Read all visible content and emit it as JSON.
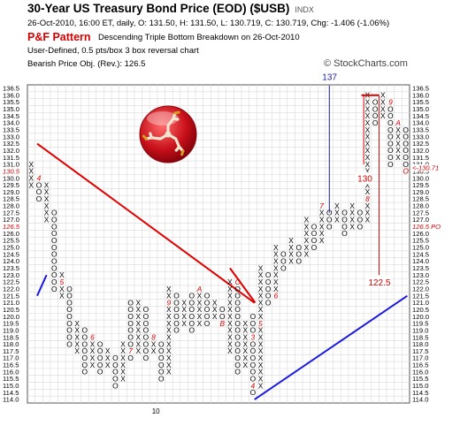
{
  "header": {
    "title": "30-Year US Treasury Bond Price (EOD) ($USB)",
    "exchange": "INDX",
    "quote_line": "26-Oct-2010, 16:00 ET, daily, O: 131.50, H: 131.50, L: 130.719, C: 130.719, Chg: -1.406 (-1.06%)",
    "pattern_label": "P&F Pattern",
    "pattern_text": "Descending Triple Bottom Breakdown on 26-Oct-2010",
    "settings": "User-Defined, 0.5 pts/box 3 box reversal chart",
    "objective": "Bearish Price Obj. (Rev.): 126.5",
    "watermark": "© StockCharts.com"
  },
  "chart_data": {
    "type": "point-and-figure",
    "box_size": 0.5,
    "reversal": 3,
    "ylim": [
      114.0,
      136.5
    ],
    "grid": true,
    "y_ticks": [
      "136.5",
      "136.0",
      "135.5",
      "135.0",
      "134.5",
      "134.0",
      "133.5",
      "133.0",
      "132.5",
      "132.0",
      "131.5",
      "131.0",
      "130.5",
      "130.0",
      "129.5",
      "129.0",
      "128.5",
      "128.0",
      "127.5",
      "127.0",
      "126.5",
      "126.0",
      "125.5",
      "125.0",
      "124.5",
      "124.0",
      "123.5",
      "123.0",
      "122.5",
      "122.0",
      "121.5",
      "121.0",
      "120.5",
      "120.0",
      "119.5",
      "119.0",
      "118.5",
      "118.0",
      "117.5",
      "117.0",
      "116.5",
      "116.0",
      "115.5",
      "115.0",
      "114.5",
      "114.0"
    ],
    "x_label": "10",
    "columns": [
      {
        "type": "X",
        "low": 129.5,
        "high": 131.0,
        "marks": []
      },
      {
        "type": "O",
        "low": 128.5,
        "high": 130.0,
        "marks": [
          {
            "at": 130.0,
            "label": "4"
          }
        ]
      },
      {
        "type": "X",
        "low": 127.0,
        "high": 129.5,
        "marks": []
      },
      {
        "type": "O",
        "low": 122.0,
        "high": 127.5,
        "marks": []
      },
      {
        "type": "X",
        "low": 121.5,
        "high": 123.0,
        "marks": [
          {
            "at": 122.5,
            "label": "5"
          }
        ]
      },
      {
        "type": "O",
        "low": 118.0,
        "high": 122.0,
        "marks": []
      },
      {
        "type": "X",
        "low": 117.5,
        "high": 119.5,
        "marks": []
      },
      {
        "type": "O",
        "low": 116.0,
        "high": 119.0,
        "marks": []
      },
      {
        "type": "X",
        "low": 116.5,
        "high": 118.5,
        "marks": [
          {
            "at": 118.5,
            "label": "6"
          }
        ]
      },
      {
        "type": "O",
        "low": 116.0,
        "high": 118.0,
        "marks": []
      },
      {
        "type": "X",
        "low": 116.5,
        "high": 117.5,
        "marks": []
      },
      {
        "type": "O",
        "low": 115.0,
        "high": 117.0,
        "marks": []
      },
      {
        "type": "X",
        "low": 115.5,
        "high": 118.0,
        "marks": []
      },
      {
        "type": "O",
        "low": 117.0,
        "high": 121.0,
        "marks": [
          {
            "at": 117.5,
            "label": "7"
          }
        ]
      },
      {
        "type": "X",
        "low": 117.5,
        "high": 121.0,
        "marks": []
      },
      {
        "type": "O",
        "low": 117.0,
        "high": 120.5,
        "marks": []
      },
      {
        "type": "X",
        "low": 117.5,
        "high": 118.5,
        "marks": [
          {
            "at": 118.5,
            "label": "8"
          }
        ]
      },
      {
        "type": "O",
        "low": 115.5,
        "high": 118.0,
        "marks": []
      },
      {
        "type": "X",
        "low": 116.0,
        "high": 122.0,
        "marks": [
          {
            "at": 121.0,
            "label": "9"
          }
        ]
      },
      {
        "type": "O",
        "low": 119.0,
        "high": 121.5,
        "marks": []
      },
      {
        "type": "X",
        "low": 119.5,
        "high": 121.0,
        "marks": []
      },
      {
        "type": "O",
        "low": 119.0,
        "high": 121.5,
        "marks": []
      },
      {
        "type": "X",
        "low": 119.5,
        "high": 122.0,
        "marks": [
          {
            "at": 122.0,
            "label": "A"
          }
        ]
      },
      {
        "type": "O",
        "low": 119.5,
        "high": 121.5,
        "marks": []
      },
      {
        "type": "X",
        "low": 120.0,
        "high": 121.0,
        "marks": []
      },
      {
        "type": "O",
        "low": 119.5,
        "high": 120.5,
        "marks": [
          {
            "at": 119.5,
            "label": "B"
          }
        ]
      },
      {
        "type": "X",
        "low": 117.5,
        "high": 122.5,
        "marks": []
      },
      {
        "type": "O",
        "low": 116.0,
        "high": 122.5,
        "marks": [
          {
            "at": 122.5,
            "label": "C"
          }
        ]
      },
      {
        "type": "X",
        "low": 116.5,
        "high": 119.5,
        "marks": []
      },
      {
        "type": "O",
        "low": 114.5,
        "high": 120.0,
        "marks": [
          {
            "at": 118.5,
            "label": "3"
          },
          {
            "at": 115.0,
            "label": "4"
          }
        ]
      },
      {
        "type": "X",
        "low": 115.0,
        "high": 123.5,
        "marks": [
          {
            "at": 119.5,
            "label": "5"
          }
        ]
      },
      {
        "type": "O",
        "low": 121.0,
        "high": 123.0,
        "marks": []
      },
      {
        "type": "X",
        "low": 121.5,
        "high": 125.0,
        "marks": [
          {
            "at": 121.5,
            "label": "6"
          }
        ]
      },
      {
        "type": "O",
        "low": 123.5,
        "high": 124.5,
        "marks": []
      },
      {
        "type": "X",
        "low": 124.0,
        "high": 125.5,
        "marks": []
      },
      {
        "type": "O",
        "low": 124.0,
        "high": 125.0,
        "marks": []
      },
      {
        "type": "X",
        "low": 124.5,
        "high": 127.0,
        "marks": []
      },
      {
        "type": "O",
        "low": 125.0,
        "high": 126.5,
        "marks": []
      },
      {
        "type": "X",
        "low": 125.5,
        "high": 128.0,
        "marks": [
          {
            "at": 128.0,
            "label": "7"
          }
        ]
      },
      {
        "type": "O",
        "low": 126.5,
        "high": 127.5,
        "marks": []
      },
      {
        "type": "X",
        "low": 127.0,
        "high": 128.0,
        "marks": []
      },
      {
        "type": "O",
        "low": 126.0,
        "high": 127.5,
        "marks": []
      },
      {
        "type": "X",
        "low": 126.5,
        "high": 128.0,
        "marks": []
      },
      {
        "type": "O",
        "low": 126.5,
        "high": 127.5,
        "marks": []
      },
      {
        "type": "X",
        "low": 127.0,
        "high": 136.0,
        "marks": [
          {
            "at": 128.5,
            "label": "8"
          }
        ]
      },
      {
        "type": "O",
        "low": 134.0,
        "high": 135.5,
        "marks": []
      },
      {
        "type": "X",
        "low": 134.5,
        "high": 136.0,
        "marks": []
      },
      {
        "type": "O",
        "low": 131.0,
        "high": 135.5,
        "marks": [
          {
            "at": 135.5,
            "label": "9"
          }
        ]
      },
      {
        "type": "X",
        "low": 131.5,
        "high": 134.0,
        "marks": [
          {
            "at": 134.0,
            "label": "A"
          }
        ]
      },
      {
        "type": "O",
        "low": 130.5,
        "high": 133.5,
        "marks": [
          {
            "at": 130.5,
            "label": "O"
          }
        ]
      }
    ],
    "annotations": {
      "targets": [
        {
          "label": "137",
          "color": "#1a1aa8"
        },
        {
          "label": "130",
          "color": "#d40000"
        },
        {
          "label": "122.5",
          "color": "#d40000"
        }
      ],
      "price_labels": [
        {
          "label": "130.5",
          "side": "left",
          "color": "#d40000"
        },
        {
          "label": "126.5",
          "side": "left",
          "color": "#d40000"
        },
        {
          "label": "<-130.71",
          "side": "right",
          "color": "#d40000"
        },
        {
          "label": "126.5 PO",
          "side": "right",
          "color": "#d40000"
        }
      ],
      "trendlines": [
        {
          "kind": "bearish resistance",
          "color": "#e00000"
        },
        {
          "kind": "bullish support",
          "color": "#1a1ae0"
        }
      ]
    }
  },
  "colors": {
    "x_mark": "#000000",
    "o_mark": "#000000",
    "bearish": "#e00000",
    "bullish": "#1a1ae0",
    "target_up": "#1a1aa8",
    "grid": "#d9d9d9"
  },
  "logo": {
    "icon": "triskelion-logo"
  }
}
